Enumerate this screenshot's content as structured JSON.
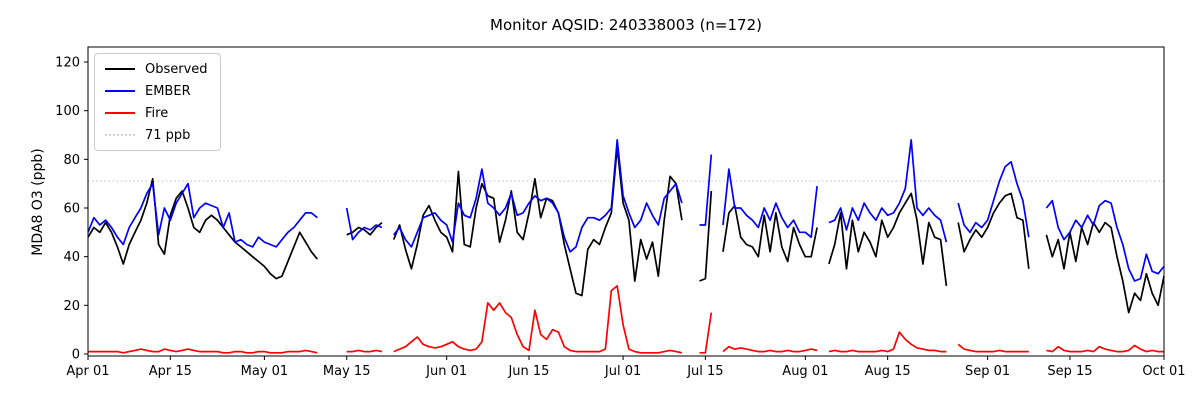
{
  "chart_data": {
    "type": "line",
    "title": "Monitor AQSID: 240338003 (n=172)",
    "xlabel": "",
    "ylabel": "MDA8 O3 (ppb)",
    "ylim": [
      0,
      126
    ],
    "grid": false,
    "legend_position": "upper left",
    "background": "#ffffff",
    "y_ticks": [
      "0",
      "20",
      "40",
      "60",
      "80",
      "100",
      "120"
    ],
    "y_tick_values": [
      0,
      20,
      40,
      60,
      80,
      100,
      120
    ],
    "x_ticks": [
      {
        "day": 0,
        "label": "Apr 01"
      },
      {
        "day": 14,
        "label": "Apr 15"
      },
      {
        "day": 30,
        "label": "May 01"
      },
      {
        "day": 44,
        "label": "May 15"
      },
      {
        "day": 61,
        "label": "Jun 01"
      },
      {
        "day": 75,
        "label": "Jun 15"
      },
      {
        "day": 91,
        "label": "Jul 01"
      },
      {
        "day": 105,
        "label": "Jul 15"
      },
      {
        "day": 122,
        "label": "Aug 01"
      },
      {
        "day": 136,
        "label": "Aug 15"
      },
      {
        "day": 153,
        "label": "Sep 01"
      },
      {
        "day": 167,
        "label": "Sep 15"
      },
      {
        "day": 183,
        "label": "Oct 01"
      }
    ],
    "threshold": {
      "value": 71,
      "label": "71 ppb",
      "color": "#d0d0d0",
      "style": "dotted"
    },
    "x_start": "Apr 01",
    "x_end": "Oct 01",
    "n_days": 184,
    "series": [
      {
        "name": "Observed",
        "color": "#000000",
        "values": [
          48,
          52,
          50,
          54,
          50,
          44,
          37,
          45,
          50,
          55,
          62,
          72,
          45,
          41,
          57,
          64,
          67,
          60,
          52,
          50,
          55,
          57,
          55,
          52,
          49,
          46,
          44,
          42,
          40,
          38,
          36,
          33,
          31,
          32,
          38,
          44,
          50,
          46,
          42,
          39,
          null,
          null,
          null,
          null,
          49,
          50,
          52,
          51,
          49,
          52,
          54,
          null,
          47,
          53,
          43,
          35,
          45,
          57,
          61,
          55,
          50,
          48,
          42,
          75,
          45,
          44,
          60,
          70,
          65,
          64,
          46,
          55,
          67,
          50,
          47,
          58,
          72,
          56,
          64,
          63,
          58,
          45,
          35,
          25,
          24,
          43,
          47,
          45,
          52,
          58,
          85,
          62,
          55,
          30,
          47,
          39,
          46,
          32,
          55,
          73,
          70,
          55,
          null,
          null,
          30,
          31,
          67,
          null,
          42,
          58,
          61,
          48,
          45,
          44,
          40,
          57,
          42,
          58,
          44,
          38,
          52,
          45,
          40,
          40,
          52,
          null,
          37,
          45,
          58,
          35,
          55,
          42,
          50,
          46,
          40,
          55,
          48,
          52,
          58,
          62,
          66,
          55,
          37,
          54,
          48,
          47,
          28,
          null,
          54,
          42,
          47,
          51,
          48,
          52,
          58,
          62,
          65,
          66,
          56,
          55,
          35,
          null,
          null,
          49,
          40,
          47,
          35,
          50,
          38,
          52,
          45,
          54,
          50,
          54,
          52,
          40,
          30,
          17,
          25,
          22,
          33,
          25,
          20,
          32
        ]
      },
      {
        "name": "EMBER",
        "color": "#0000ff",
        "values": [
          50,
          56,
          53,
          55,
          52,
          48,
          45,
          52,
          56,
          60,
          66,
          70,
          49,
          60,
          55,
          62,
          66,
          70,
          56,
          60,
          62,
          61,
          60,
          52,
          58,
          46,
          47,
          45,
          44,
          48,
          46,
          45,
          44,
          47,
          50,
          52,
          55,
          58,
          58,
          56,
          null,
          null,
          null,
          null,
          60,
          47,
          50,
          52,
          51,
          53,
          52,
          null,
          49,
          52,
          47,
          44,
          50,
          56,
          57,
          58,
          55,
          53,
          46,
          62,
          57,
          56,
          64,
          76,
          62,
          60,
          57,
          60,
          66,
          57,
          58,
          62,
          65,
          63,
          64,
          62,
          58,
          48,
          42,
          44,
          52,
          56,
          56,
          55,
          57,
          60,
          88,
          65,
          58,
          52,
          55,
          62,
          57,
          53,
          64,
          67,
          70,
          62,
          null,
          null,
          53,
          53,
          82,
          null,
          53,
          76,
          60,
          60,
          57,
          55,
          52,
          60,
          55,
          62,
          56,
          52,
          55,
          50,
          50,
          48,
          69,
          null,
          54,
          55,
          60,
          51,
          60,
          55,
          62,
          58,
          55,
          60,
          57,
          58,
          62,
          68,
          88,
          60,
          57,
          60,
          57,
          55,
          46,
          null,
          62,
          53,
          50,
          54,
          52,
          55,
          63,
          71,
          77,
          79,
          70,
          63,
          48,
          null,
          null,
          60,
          63,
          52,
          47,
          50,
          55,
          52,
          57,
          53,
          61,
          63,
          62,
          52,
          45,
          35,
          30,
          31,
          41,
          34,
          33,
          36
        ]
      },
      {
        "name": "Fire",
        "color": "#ff0000",
        "values": [
          1,
          1,
          1,
          1,
          1,
          1,
          0.5,
          1,
          1.5,
          2,
          1.5,
          1,
          1,
          2,
          1.5,
          1,
          1.5,
          2,
          1.5,
          1,
          1,
          1,
          1,
          0.5,
          0.5,
          1,
          1,
          0.5,
          0.5,
          1,
          1,
          0.5,
          0.5,
          0.5,
          1,
          1,
          1,
          1.5,
          1,
          0.5,
          null,
          null,
          null,
          null,
          1,
          1,
          1.5,
          1,
          1,
          1.5,
          1,
          null,
          1,
          2,
          3,
          5,
          7,
          4,
          3,
          2.5,
          3,
          4,
          5,
          3,
          2,
          1.5,
          2,
          5,
          21,
          18,
          21,
          17,
          15,
          8,
          3,
          1.5,
          18,
          8,
          6,
          10,
          9,
          3,
          1.5,
          1,
          1,
          1,
          1,
          1,
          2,
          26,
          28,
          12,
          2,
          1,
          0.5,
          0.5,
          0.5,
          0.5,
          1,
          1.5,
          1,
          0.5,
          null,
          null,
          0.5,
          0.5,
          17,
          null,
          1,
          3,
          2,
          2.5,
          2,
          1.5,
          1,
          1,
          1.5,
          1,
          1,
          1.5,
          1,
          1,
          1.5,
          2,
          1.5,
          null,
          1,
          1.5,
          1,
          1,
          1.5,
          1,
          1,
          1,
          1,
          1.5,
          1,
          2,
          9,
          6,
          4,
          2.5,
          2,
          1.5,
          1.5,
          1,
          1,
          null,
          4,
          2,
          1.5,
          1,
          1,
          1,
          1,
          1.5,
          1,
          1,
          1,
          1,
          1,
          null,
          null,
          1.5,
          1,
          3,
          1.5,
          1,
          1,
          1,
          1.5,
          1,
          3,
          2,
          1.5,
          1,
          1,
          1.5,
          3.5,
          2,
          1,
          1.5,
          1,
          1
        ]
      }
    ],
    "legend": [
      {
        "label": "Observed",
        "color": "#000000",
        "style": "solid"
      },
      {
        "label": "EMBER",
        "color": "#0000ff",
        "style": "solid"
      },
      {
        "label": "Fire",
        "color": "#ff0000",
        "style": "solid"
      },
      {
        "label": "71 ppb",
        "color": "#d0d0d0",
        "style": "dotted"
      }
    ]
  }
}
